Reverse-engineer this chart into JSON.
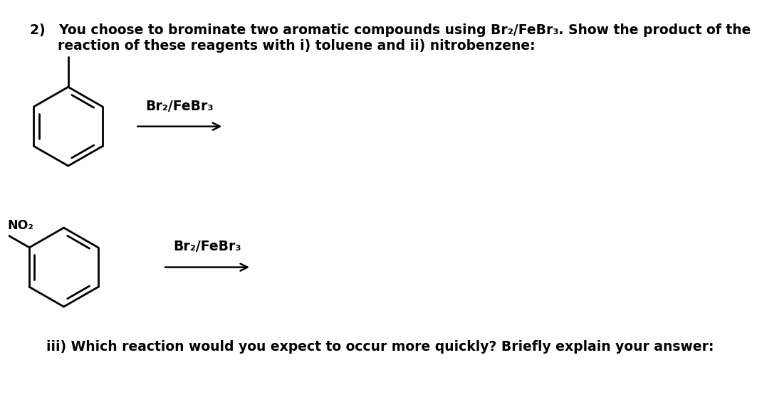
{
  "background_color": "#ffffff",
  "title_line1": "2)   You choose to brominate two aromatic compounds using Br₂/FeBr₃. Show the product of the",
  "title_line2": "      reaction of these reagents with i) toluene and ii) nitrobenzene:",
  "reagent1": "Br₂/FeBr₃",
  "reagent2": "Br₂/FeBr₃",
  "no2_label": "NO₂",
  "footer_text": "iii) Which reaction would you expect to occur more quickly? Briefly explain your answer:",
  "title_fontsize": 13.5,
  "label_fontsize": 13.5,
  "footer_fontsize": 13.5
}
